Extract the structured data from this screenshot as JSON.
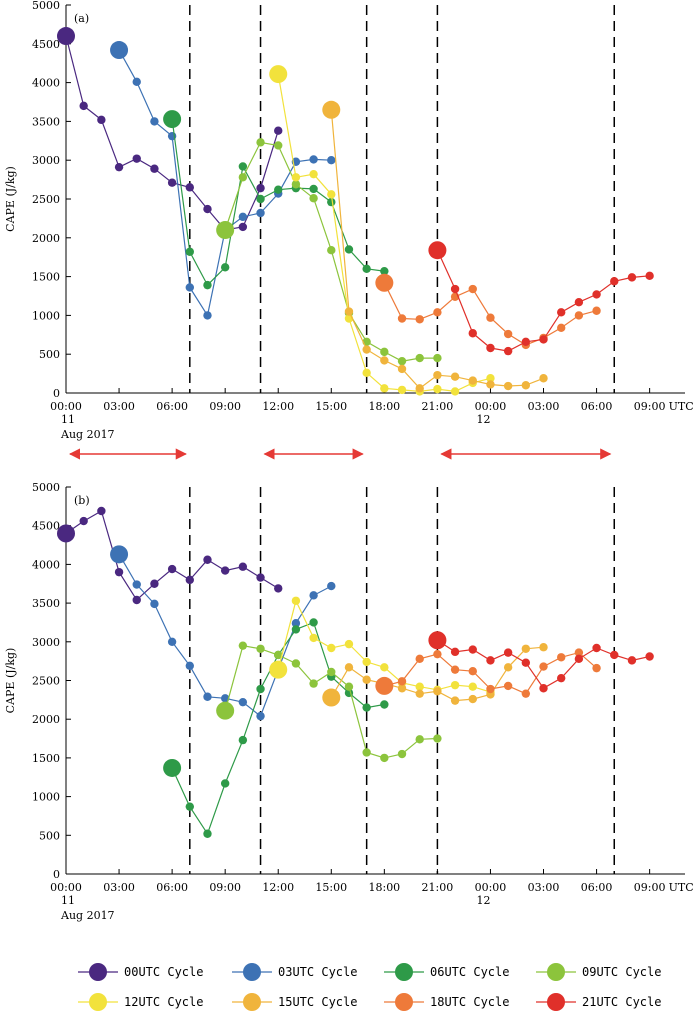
{
  "figure": {
    "x_axis": {
      "tick_labels": [
        "00:00",
        "03:00",
        "06:00",
        "09:00",
        "12:00",
        "15:00",
        "18:00",
        "21:00",
        "00:00",
        "03:00",
        "06:00",
        "09:00"
      ],
      "unit": "UTC",
      "date_line1": "11",
      "date_line2": "Aug 2017",
      "date2": "12"
    },
    "y_axis": {
      "label": "CAPE (J/kg)",
      "ticks": [
        0,
        500,
        1000,
        1500,
        2000,
        2500,
        3000,
        3500,
        4000,
        4500,
        5000
      ]
    },
    "legend": [
      {
        "label": "00UTC Cycle",
        "color": "#4a2880"
      },
      {
        "label": "03UTC Cycle",
        "color": "#3d72b4"
      },
      {
        "label": "06UTC Cycle",
        "color": "#2e9a48"
      },
      {
        "label": "09UTC Cycle",
        "color": "#8cc43c"
      },
      {
        "label": "12UTC Cycle",
        "color": "#f2e23c"
      },
      {
        "label": "15UTC Cycle",
        "color": "#f0b43c"
      },
      {
        "label": "18UTC Cycle",
        "color": "#ee7a3a"
      },
      {
        "label": "21UTC Cycle",
        "color": "#e0302a"
      }
    ],
    "arrow_color": "#e53935"
  },
  "chart_data": [
    {
      "type": "line",
      "panel_label": "(a)",
      "ylabel": "CAPE (J/kg)",
      "x_unit": "hours since 00 UTC 11 Aug 2017",
      "xlim": [
        0,
        35
      ],
      "ylim": [
        0,
        5000
      ],
      "vertical_dashed_lines": [
        7,
        11,
        17,
        21,
        31
      ],
      "arrows": [
        [
          0,
          7
        ],
        [
          11,
          17
        ],
        [
          21,
          31
        ]
      ],
      "series": [
        {
          "name": "00UTC Cycle",
          "x": [
            0,
            1,
            2,
            3,
            4,
            5,
            6,
            7,
            8,
            9,
            10,
            11,
            12
          ],
          "values": [
            4600,
            3700,
            3520,
            2910,
            3020,
            2890,
            2710,
            2650,
            2370,
            2100,
            2140,
            2640,
            3380
          ]
        },
        {
          "name": "03UTC Cycle",
          "x": [
            3,
            4,
            5,
            6,
            7,
            8,
            9,
            10,
            11,
            12,
            13,
            14,
            15
          ],
          "values": [
            4420,
            4010,
            3500,
            3310,
            1360,
            1000,
            2100,
            2270,
            2320,
            2570,
            2980,
            3010,
            3000
          ]
        },
        {
          "name": "06UTC Cycle",
          "x": [
            6,
            7,
            8,
            9,
            10,
            11,
            12,
            13,
            14,
            15,
            16,
            17,
            18
          ],
          "values": [
            3530,
            1820,
            1390,
            1620,
            2920,
            2500,
            2620,
            2640,
            2630,
            2460,
            1850,
            1600,
            1570
          ]
        },
        {
          "name": "09UTC Cycle",
          "x": [
            9,
            10,
            11,
            12,
            13,
            14,
            15,
            16,
            17,
            18,
            19,
            20,
            21
          ],
          "values": [
            2100,
            2780,
            3230,
            3190,
            2690,
            2510,
            1840,
            1030,
            660,
            530,
            410,
            450,
            450
          ]
        },
        {
          "name": "12UTC Cycle",
          "x": [
            12,
            13,
            14,
            15,
            16,
            17,
            18,
            19,
            20,
            21,
            22,
            23,
            24
          ],
          "values": [
            4110,
            2780,
            2820,
            2560,
            960,
            260,
            60,
            40,
            20,
            50,
            20,
            130,
            190
          ]
        },
        {
          "name": "15UTC Cycle",
          "x": [
            15,
            16,
            17,
            18,
            19,
            20,
            21,
            22,
            23,
            24,
            25,
            26,
            27
          ],
          "values": [
            3650,
            1050,
            560,
            420,
            310,
            60,
            230,
            210,
            160,
            110,
            90,
            100,
            190
          ]
        },
        {
          "name": "18UTC Cycle",
          "x": [
            18,
            19,
            20,
            21,
            22,
            23,
            24,
            25,
            26,
            27,
            28,
            29,
            30
          ],
          "values": [
            1420,
            960,
            950,
            1040,
            1240,
            1340,
            970,
            760,
            620,
            710,
            840,
            1000,
            1060
          ]
        },
        {
          "name": "21UTC Cycle",
          "x": [
            21,
            22,
            23,
            24,
            25,
            26,
            27,
            28,
            29,
            30,
            31,
            32,
            33
          ],
          "values": [
            1840,
            1340,
            770,
            580,
            540,
            660,
            690,
            1040,
            1170,
            1270,
            1440,
            1490,
            1510
          ]
        }
      ]
    },
    {
      "type": "line",
      "panel_label": "(b)",
      "ylabel": "CAPE (J/kg)",
      "x_unit": "hours since 00 UTC 11 Aug 2017",
      "xlim": [
        0,
        35
      ],
      "ylim": [
        0,
        5000
      ],
      "vertical_dashed_lines": [
        7,
        11,
        17,
        21,
        31
      ],
      "series": [
        {
          "name": "00UTC Cycle",
          "x": [
            0,
            1,
            2,
            3,
            4,
            5,
            6,
            7,
            8,
            9,
            10,
            11,
            12
          ],
          "values": [
            4400,
            4560,
            4690,
            3900,
            3540,
            3750,
            3940,
            3800,
            4060,
            3920,
            3970,
            3830,
            3690
          ]
        },
        {
          "name": "03UTC Cycle",
          "x": [
            3,
            4,
            5,
            6,
            7,
            8,
            9,
            10,
            11,
            12,
            13,
            14,
            15
          ],
          "values": [
            4130,
            3740,
            3490,
            3000,
            2690,
            2290,
            2270,
            2220,
            2040,
            2640,
            3240,
            3600,
            3720
          ]
        },
        {
          "name": "06UTC Cycle",
          "x": [
            6,
            7,
            8,
            9,
            10,
            11,
            12,
            13,
            14,
            15,
            16,
            17,
            18
          ],
          "values": [
            1370,
            870,
            520,
            1170,
            1730,
            2390,
            2830,
            3160,
            3250,
            2550,
            2340,
            2150,
            2190
          ]
        },
        {
          "name": "09UTC Cycle",
          "x": [
            9,
            10,
            11,
            12,
            13,
            14,
            15,
            16,
            17,
            18,
            19,
            20,
            21
          ],
          "values": [
            2110,
            2950,
            2910,
            2830,
            2720,
            2460,
            2610,
            2420,
            1570,
            1500,
            1550,
            1740,
            1750
          ]
        },
        {
          "name": "12UTC Cycle",
          "x": [
            12,
            13,
            14,
            15,
            16,
            17,
            18,
            19,
            20,
            21,
            22,
            23,
            24
          ],
          "values": [
            2640,
            3530,
            3050,
            2920,
            2970,
            2740,
            2670,
            2470,
            2420,
            2380,
            2440,
            2420,
            2350
          ]
        },
        {
          "name": "15UTC Cycle",
          "x": [
            15,
            16,
            17,
            18,
            19,
            20,
            21,
            22,
            23,
            24,
            25,
            26,
            27
          ],
          "values": [
            2280,
            2670,
            2510,
            2460,
            2400,
            2330,
            2360,
            2240,
            2260,
            2320,
            2670,
            2910,
            2930
          ]
        },
        {
          "name": "18UTC Cycle",
          "x": [
            18,
            19,
            20,
            21,
            22,
            23,
            24,
            25,
            26,
            27,
            28,
            29,
            30
          ],
          "values": [
            2430,
            2490,
            2780,
            2840,
            2640,
            2620,
            2390,
            2430,
            2330,
            2680,
            2800,
            2860,
            2660
          ]
        },
        {
          "name": "21UTC Cycle",
          "x": [
            21,
            22,
            23,
            24,
            25,
            26,
            27,
            28,
            29,
            30,
            31,
            32,
            33
          ],
          "values": [
            3020,
            2870,
            2900,
            2760,
            2860,
            2730,
            2400,
            2530,
            2780,
            2920,
            2830,
            2760,
            2810
          ]
        }
      ]
    }
  ]
}
